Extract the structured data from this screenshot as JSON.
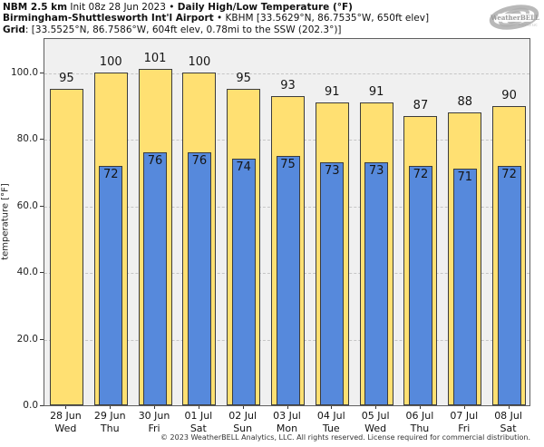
{
  "header": {
    "line1_model": "NBM 2.5 km",
    "line1_init": " Init 08z 28 Jun 2023 ",
    "line1_sep": "• ",
    "line1_product": "Daily High/Low Temperature (°F)",
    "line2_station": "Birmingham-Shuttlesworth Int'l Airport",
    "line2_meta": " • KBHM [33.5629°N, 86.7535°W, 650ft elev]",
    "line3_label": "Grid",
    "line3_meta": ": [33.5525°N, 86.7586°W, 604ft elev, 0.78mi to the SSW (202.3°)]"
  },
  "logo": {
    "brand": "WeatherBELL",
    "sub": "Analytics LLC"
  },
  "footer": {
    "copyright": "© 2023 WeatherBELL Analytics, LLC. All rights reserved. License required for commercial distribution."
  },
  "chart_data": {
    "type": "bar",
    "title": "NBM 2.5 km Init 08z 28 Jun 2023 • Daily High/Low Temperature (°F)",
    "subtitle": "Birmingham-Shuttlesworth Int'l Airport • KBHM",
    "xlabel": "",
    "ylabel": "temperature [°F]",
    "ylim": [
      0,
      110.6
    ],
    "yticks": [
      0,
      20,
      40,
      60,
      80,
      100
    ],
    "ytick_labels": [
      "0.0",
      "20.0",
      "40.0",
      "60.0",
      "80.0",
      "100.0"
    ],
    "grid": true,
    "legend_position": "none",
    "categories": [
      {
        "date": "28 Jun",
        "day": "Wed"
      },
      {
        "date": "29 Jun",
        "day": "Thu"
      },
      {
        "date": "30 Jun",
        "day": "Fri"
      },
      {
        "date": "01 Jul",
        "day": "Sat"
      },
      {
        "date": "02 Jul",
        "day": "Sun"
      },
      {
        "date": "03 Jul",
        "day": "Mon"
      },
      {
        "date": "04 Jul",
        "day": "Tue"
      },
      {
        "date": "05 Jul",
        "day": "Wed"
      },
      {
        "date": "06 Jul",
        "day": "Thu"
      },
      {
        "date": "07 Jul",
        "day": "Fri"
      },
      {
        "date": "08 Jul",
        "day": "Sat"
      }
    ],
    "series": [
      {
        "name": "daily high",
        "color": "#ffe072",
        "values": [
          95,
          100,
          101,
          100,
          95,
          93,
          91,
          91,
          87,
          88,
          90
        ]
      },
      {
        "name": "daily low",
        "color": "#5689dc",
        "values": [
          null,
          72,
          76,
          76,
          74,
          75,
          73,
          73,
          72,
          71,
          72
        ]
      }
    ]
  }
}
